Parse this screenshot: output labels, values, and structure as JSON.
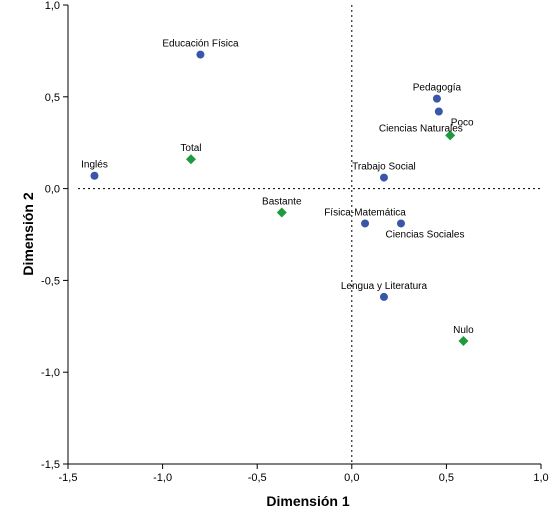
{
  "chart_data": {
    "type": "scatter",
    "title": "",
    "xlabel": "Dimensión 1",
    "ylabel": "Dimensión 2",
    "xlim": [
      -1.5,
      1.0
    ],
    "ylim": [
      -1.5,
      1.0
    ],
    "x_ticks": [
      "-1,5",
      "-1,0",
      "-0,5",
      "0,0",
      "0,5",
      "1,0"
    ],
    "y_ticks": [
      "1,0",
      "0,5",
      "0,0",
      "-0,5",
      "-1,0",
      "-1,5"
    ],
    "x_tick_values": [
      -1.5,
      -1.0,
      -0.5,
      0.0,
      0.5,
      1.0
    ],
    "y_tick_values": [
      1.0,
      0.5,
      0.0,
      -0.5,
      -1.0,
      -1.5
    ],
    "reference_lines": {
      "x": 0,
      "y": 0,
      "style": "dotted"
    },
    "grid": false,
    "legend": false,
    "series": [
      {
        "marker": "circle",
        "color": "#3a56a8",
        "points": [
          {
            "label": "Educación Física",
            "x": -0.8,
            "y": 0.73
          },
          {
            "label": "Pedagogía",
            "x": 0.45,
            "y": 0.49
          },
          {
            "label": "Ciencias Naturales",
            "x": 0.46,
            "y": 0.42
          },
          {
            "label": "Inglés",
            "x": -1.36,
            "y": 0.07
          },
          {
            "label": "Trabajo Social",
            "x": 0.17,
            "y": 0.06
          },
          {
            "label": "Física-Matemática",
            "x": 0.07,
            "y": -0.19
          },
          {
            "label": "Ciencias Sociales",
            "x": 0.26,
            "y": -0.19
          },
          {
            "label": "Lengua y Literatura",
            "x": 0.17,
            "y": -0.59
          }
        ]
      },
      {
        "marker": "diamond",
        "color": "#1f9a3f",
        "points": [
          {
            "label": "Total",
            "x": -0.85,
            "y": 0.16
          },
          {
            "label": "Poco",
            "x": 0.52,
            "y": 0.29
          },
          {
            "label": "Bastante",
            "x": -0.37,
            "y": -0.13
          },
          {
            "label": "Nulo",
            "x": 0.59,
            "y": -0.83
          }
        ]
      }
    ]
  }
}
